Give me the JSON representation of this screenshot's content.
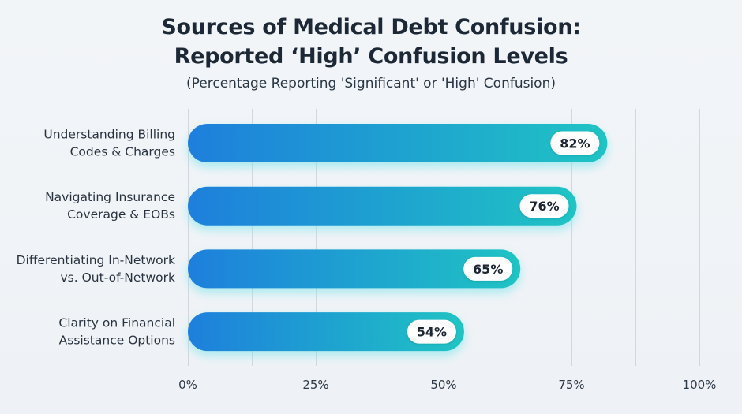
{
  "chart_data": {
    "type": "bar",
    "orientation": "horizontal",
    "title_lines": [
      "Sources of Medical Debt Confusion:",
      "Reported ‘High’ Confusion Levels"
    ],
    "subtitle": "(Percentage Reporting 'Significant' or 'High' Confusion)",
    "categories": [
      [
        "Understanding Billing",
        "Codes & Charges"
      ],
      [
        "Navigating Insurance",
        "Coverage & EOBs"
      ],
      [
        "Differentiating In-Network",
        "vs. Out-of-Network"
      ],
      [
        "Clarity on Financial",
        "Assistance Options"
      ]
    ],
    "values": [
      82,
      76,
      65,
      54
    ],
    "value_labels": [
      "82%",
      "76%",
      "65%",
      "54%"
    ],
    "xlabel": "",
    "ylabel": "",
    "xlim": [
      0,
      100
    ],
    "x_ticks": [
      0,
      25,
      50,
      75,
      100
    ],
    "x_tick_labels": [
      "0%",
      "25%",
      "50%",
      "75%",
      "100%"
    ],
    "grid": "vertical, every 12.5%",
    "legend": "none",
    "colors": {
      "bar_start": "#1e7fdc",
      "bar_end": "#1fc4c4",
      "glow": "#6fe3ea",
      "badge_bg": "#ffffff",
      "grid": "#d3d8de"
    }
  }
}
